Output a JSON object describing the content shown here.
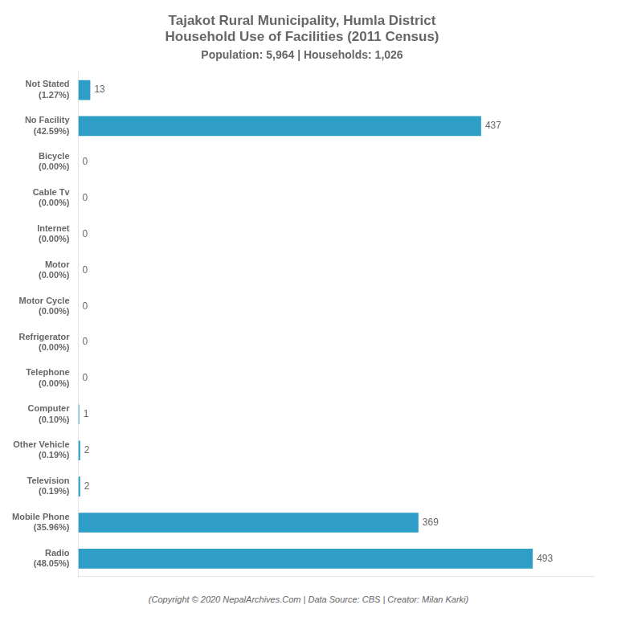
{
  "chart_data": {
    "type": "bar",
    "orientation": "horizontal",
    "title": "Tajakot Rural Municipality, Humla District\nHousehold Use of Facilities (2011 Census)",
    "subtitle": "Population: 5,964 | Households: 1,026",
    "footer": "(Copyright © 2020 NepalArchives.Com | Data Source: CBS | Creator: Milan Karki)",
    "categories": [
      "Radio\n(48.05%)",
      "Mobile Phone\n(35.96%)",
      "Television\n(0.19%)",
      "Other Vehicle\n(0.19%)",
      "Computer\n(0.10%)",
      "Telephone\n(0.00%)",
      "Refrigerator\n(0.00%)",
      "Motor Cycle\n(0.00%)",
      "Motor\n(0.00%)",
      "Internet\n(0.00%)",
      "Cable Tv\n(0.00%)",
      "Bicycle\n(0.00%)",
      "No Facility\n(42.59%)",
      "Not Stated\n(1.27%)"
    ],
    "values": [
      493,
      369,
      2,
      2,
      1,
      0,
      0,
      0,
      0,
      0,
      0,
      0,
      437,
      13
    ],
    "color": "#2E9EC6",
    "xlim": [
      0,
      560
    ],
    "grid": false,
    "data_labels": true,
    "tick_labels": "y"
  }
}
